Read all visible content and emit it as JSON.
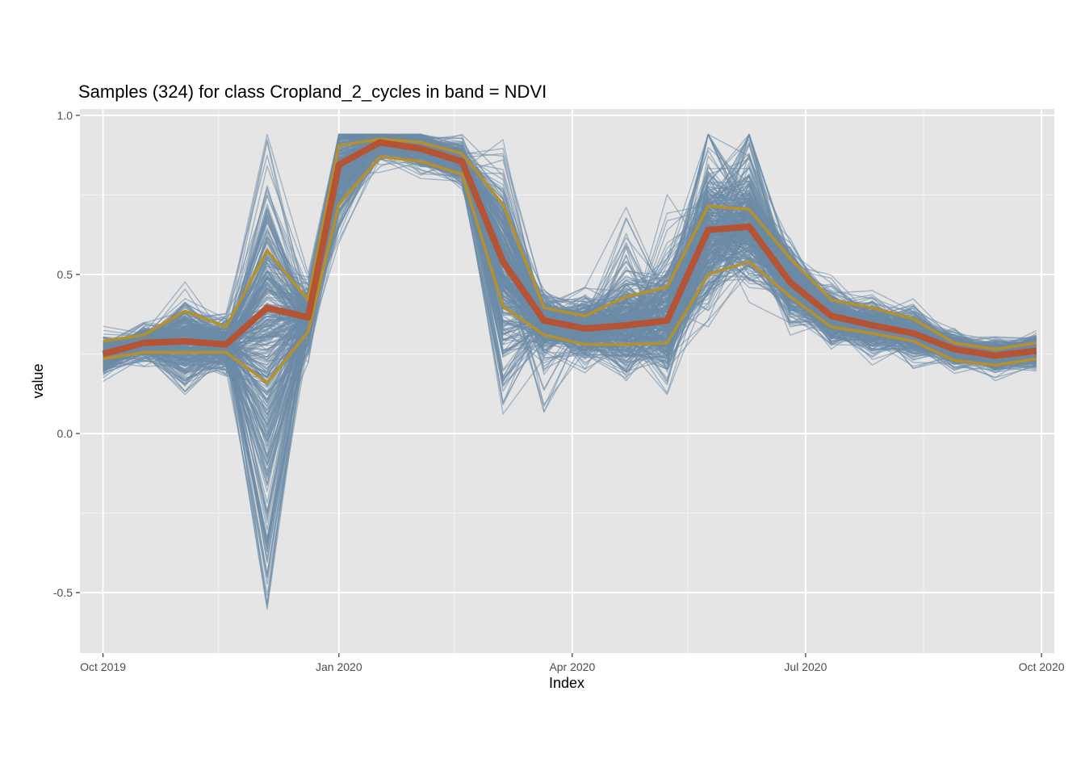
{
  "chart_data": {
    "type": "line",
    "title": "Samples (324) for class Cropland_2_cycles in band = NDVI",
    "xlabel": "Index",
    "ylabel": "value",
    "x_range": [
      "2019-09-22",
      "2020-10-06"
    ],
    "ylim": [
      -0.69,
      1.02
    ],
    "x_ticks": [
      {
        "date": "2019-10-01",
        "label": "Oct 2019"
      },
      {
        "date": "2020-01-01",
        "label": "Jan 2020"
      },
      {
        "date": "2020-04-01",
        "label": "Apr 2020"
      },
      {
        "date": "2020-07-01",
        "label": "Jul 2020"
      },
      {
        "date": "2020-10-01",
        "label": "Oct 2020"
      }
    ],
    "x_minor_ticks": [
      "2019-11-15",
      "2020-02-15",
      "2020-05-16",
      "2020-08-16"
    ],
    "y_ticks": [
      {
        "value": -0.5,
        "label": "-0.5"
      },
      {
        "value": 0.0,
        "label": "0.0"
      },
      {
        "value": 0.5,
        "label": "0.5"
      },
      {
        "value": 1.0,
        "label": "1.0"
      }
    ],
    "grid": true,
    "legend": "none",
    "sample_count": 324,
    "x": [
      "2019-10-01",
      "2019-10-17",
      "2019-11-02",
      "2019-11-18",
      "2019-12-04",
      "2019-12-20",
      "2020-01-01",
      "2020-01-17",
      "2020-02-02",
      "2020-02-18",
      "2020-03-05",
      "2020-03-21",
      "2020-04-06",
      "2020-04-22",
      "2020-05-08",
      "2020-05-24",
      "2020-06-09",
      "2020-06-25",
      "2020-07-11",
      "2020-07-27",
      "2020-08-12",
      "2020-08-28",
      "2020-09-13",
      "2020-09-29"
    ],
    "series": [
      {
        "role": "median",
        "color": "#b55435",
        "values": [
          0.25,
          0.285,
          0.29,
          0.28,
          0.395,
          0.365,
          0.845,
          0.915,
          0.895,
          0.855,
          0.54,
          0.355,
          0.33,
          0.34,
          0.355,
          0.64,
          0.65,
          0.475,
          0.37,
          0.34,
          0.315,
          0.265,
          0.245,
          0.26
        ]
      },
      {
        "role": "upper_quantile",
        "color": "#b8902a",
        "values": [
          0.29,
          0.31,
          0.385,
          0.335,
          0.575,
          0.42,
          0.905,
          0.925,
          0.915,
          0.88,
          0.72,
          0.395,
          0.37,
          0.43,
          0.46,
          0.715,
          0.705,
          0.55,
          0.42,
          0.395,
          0.36,
          0.285,
          0.265,
          0.285
        ]
      },
      {
        "role": "lower_quantile",
        "color": "#b8902a",
        "values": [
          0.235,
          0.255,
          0.255,
          0.255,
          0.16,
          0.32,
          0.72,
          0.87,
          0.855,
          0.815,
          0.4,
          0.31,
          0.28,
          0.28,
          0.285,
          0.5,
          0.54,
          0.43,
          0.335,
          0.315,
          0.29,
          0.23,
          0.215,
          0.235
        ]
      }
    ],
    "sample_lines": {
      "color": "#6c8aa6",
      "count": 324
    }
  }
}
